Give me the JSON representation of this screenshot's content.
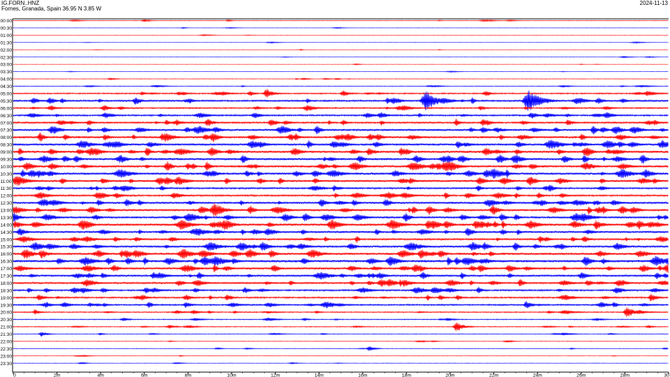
{
  "header": {
    "station": "IG.FORN..HNZ",
    "location": "Fornes, Granada, Spain  36.95 N 3.85 W",
    "date": "2024-11-13"
  },
  "colors": {
    "odd_row": "#ff0000",
    "even_row": "#0000ff",
    "frame": "#000000"
  },
  "chart_data": {
    "type": "line",
    "title": "",
    "xlabel": "",
    "ylabel": "",
    "x_ticks": [
      "0",
      "2m",
      "4m",
      "6m",
      "8m",
      "10m",
      "12m",
      "14m",
      "16m",
      "18m",
      "20m",
      "22m",
      "24m",
      "26m",
      "28m",
      "30"
    ],
    "x_range_minutes": [
      0,
      30
    ],
    "row_labels": [
      "00:00",
      "00:30",
      "01:00",
      "01:30",
      "02:00",
      "02:30",
      "03:00",
      "03:30",
      "04:00",
      "04:30",
      "05:00",
      "05:30",
      "06:00",
      "06:30",
      "07:00",
      "07:30",
      "08:00",
      "08:30",
      "09:00",
      "09:30",
      "10:00",
      "10:30",
      "11:00",
      "11:30",
      "12:00",
      "12:30",
      "13:00",
      "13:30",
      "14:00",
      "14:30",
      "15:00",
      "15:30",
      "16:00",
      "16:30",
      "17:00",
      "17:30",
      "18:00",
      "18:30",
      "19:00",
      "19:30",
      "20:00",
      "20:30",
      "21:00",
      "21:30",
      "22:00",
      "22:30",
      "23:00",
      "23:30"
    ],
    "row_activity": [
      0.5,
      0.3,
      0.3,
      0.3,
      0.3,
      0.3,
      0.3,
      0.3,
      0.5,
      0.6,
      1.2,
      1.6,
      1.3,
      1.5,
      1.6,
      1.9,
      2.0,
      2.0,
      2.1,
      2.1,
      2.1,
      2.1,
      2.0,
      1.6,
      1.6,
      1.9,
      2.0,
      1.9,
      2.2,
      1.9,
      1.7,
      2.0,
      2.1,
      2.2,
      2.1,
      1.9,
      1.7,
      1.5,
      1.4,
      1.4,
      1.0,
      0.8,
      0.8,
      0.6,
      0.5,
      0.5,
      0.4,
      0.4
    ],
    "events": [
      {
        "row": 10,
        "minute": 11.6,
        "amp": 7
      },
      {
        "row": 10,
        "minute": 15.1,
        "amp": 5
      },
      {
        "row": 11,
        "minute": 5.6,
        "amp": 6
      },
      {
        "row": 11,
        "minute": 18.9,
        "amp": 14
      },
      {
        "row": 11,
        "minute": 23.6,
        "amp": 16
      },
      {
        "row": 12,
        "minute": 21.4,
        "amp": 4
      },
      {
        "row": 14,
        "minute": 8.9,
        "amp": 6
      },
      {
        "row": 14,
        "minute": 11.8,
        "amp": 6
      },
      {
        "row": 14,
        "minute": 25.4,
        "amp": 5
      },
      {
        "row": 16,
        "minute": 4.2,
        "amp": 5
      },
      {
        "row": 18,
        "minute": 3.0,
        "amp": 5
      },
      {
        "row": 18,
        "minute": 16.3,
        "amp": 6
      },
      {
        "row": 19,
        "minute": 22.3,
        "amp": 4
      },
      {
        "row": 20,
        "minute": 8.0,
        "amp": 5
      },
      {
        "row": 20,
        "minute": 14.7,
        "amp": 4
      },
      {
        "row": 21,
        "minute": 10.7,
        "amp": 5
      },
      {
        "row": 22,
        "minute": 4.1,
        "amp": 5
      },
      {
        "row": 22,
        "minute": 18.2,
        "amp": 5
      },
      {
        "row": 25,
        "minute": 5.2,
        "amp": 6
      },
      {
        "row": 25,
        "minute": 15.6,
        "amp": 5
      },
      {
        "row": 26,
        "minute": 9.2,
        "amp": 11
      },
      {
        "row": 26,
        "minute": 1.1,
        "amp": 4
      },
      {
        "row": 28,
        "minute": 0.1,
        "amp": 6
      },
      {
        "row": 28,
        "minute": 3.4,
        "amp": 6
      },
      {
        "row": 28,
        "minute": 21.7,
        "amp": 5
      },
      {
        "row": 28,
        "minute": 26.7,
        "amp": 7
      },
      {
        "row": 28,
        "minute": 29.5,
        "amp": 5
      },
      {
        "row": 31,
        "minute": 9.2,
        "amp": 5
      },
      {
        "row": 31,
        "minute": 25.1,
        "amp": 5
      },
      {
        "row": 32,
        "minute": 1.3,
        "amp": 7
      },
      {
        "row": 33,
        "minute": 2.1,
        "amp": 5
      },
      {
        "row": 33,
        "minute": 10.1,
        "amp": 5
      },
      {
        "row": 34,
        "minute": 7.8,
        "amp": 5
      },
      {
        "row": 34,
        "minute": 18.6,
        "amp": 5
      },
      {
        "row": 35,
        "minute": 4.1,
        "amp": 5
      },
      {
        "row": 36,
        "minute": 3.3,
        "amp": 5
      },
      {
        "row": 36,
        "minute": 16.3,
        "amp": 4
      },
      {
        "row": 36,
        "minute": 26.3,
        "amp": 5
      },
      {
        "row": 37,
        "minute": 10.6,
        "amp": 5
      },
      {
        "row": 38,
        "minute": 29.2,
        "amp": 6
      },
      {
        "row": 39,
        "minute": 1.5,
        "amp": 5
      },
      {
        "row": 39,
        "minute": 7.9,
        "amp": 5
      },
      {
        "row": 39,
        "minute": 23.5,
        "amp": 6
      },
      {
        "row": 40,
        "minute": 28.1,
        "amp": 8
      },
      {
        "row": 40,
        "minute": 1.0,
        "amp": 4
      },
      {
        "row": 42,
        "minute": 20.3,
        "amp": 7
      },
      {
        "row": 43,
        "minute": 1.3,
        "amp": 4
      },
      {
        "row": 45,
        "minute": 16.3,
        "amp": 4
      }
    ]
  }
}
